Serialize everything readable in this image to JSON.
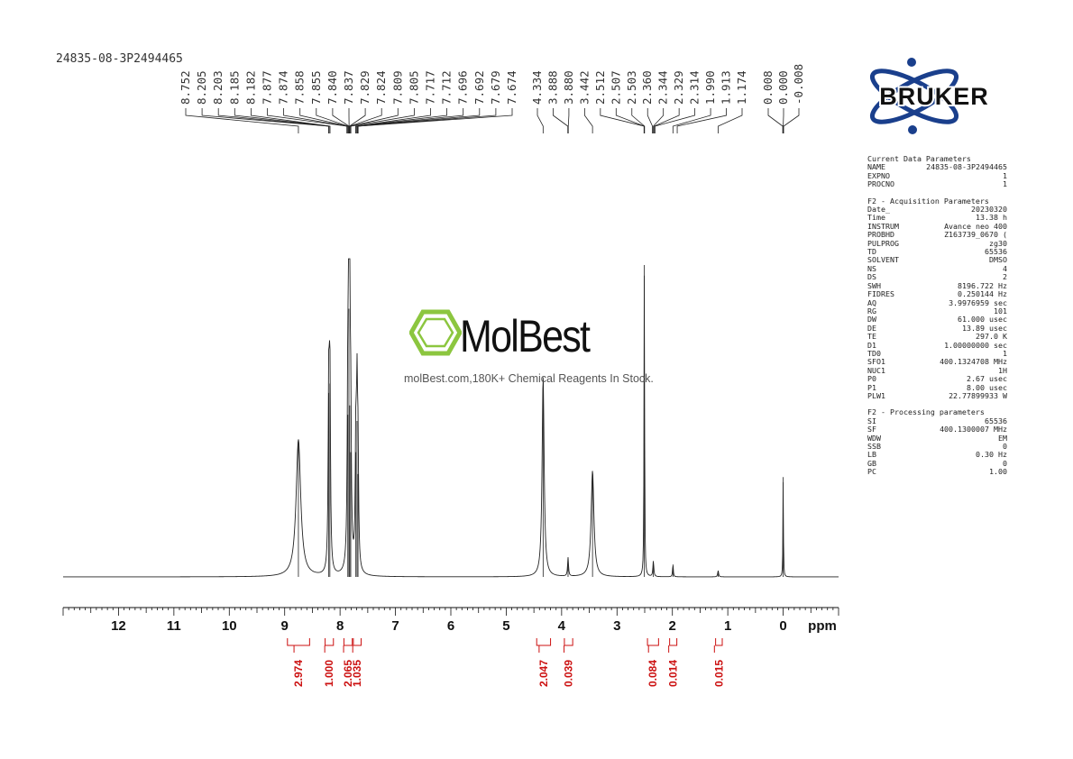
{
  "header": {
    "sample_id": "24835-08-3P2494465"
  },
  "logo": {
    "brand": "BRUKER"
  },
  "watermark": {
    "name": "MolBest",
    "tagline": "molBest.com,180K+ Chemical Reagents In Stock."
  },
  "colors": {
    "integral": "#cc1111",
    "trace": "#222222",
    "logo_blue": "#1a3f8c",
    "molbest_green": "#8cc63f"
  },
  "params": {
    "current": {
      "title": "Current Data Parameters",
      "rows": [
        [
          "NAME",
          "24835-08-3P2494465"
        ],
        [
          "EXPNO",
          "1"
        ],
        [
          "PROCNO",
          "1"
        ]
      ]
    },
    "acquisition": {
      "title": "F2 - Acquisition Parameters",
      "rows": [
        [
          "Date_",
          "20230320"
        ],
        [
          "Time",
          "13.38 h"
        ],
        [
          "INSTRUM",
          "Avance neo 400"
        ],
        [
          "PROBHD",
          "Z163739_0670 ("
        ],
        [
          "PULPROG",
          "zg30"
        ],
        [
          "TD",
          "65536"
        ],
        [
          "SOLVENT",
          "DMSO"
        ],
        [
          "NS",
          "4"
        ],
        [
          "DS",
          "2"
        ],
        [
          "SWH",
          "8196.722 Hz"
        ],
        [
          "FIDRES",
          "0.250144 Hz"
        ],
        [
          "AQ",
          "3.9976959 sec"
        ],
        [
          "RG",
          "101"
        ],
        [
          "DW",
          "61.000 usec"
        ],
        [
          "DE",
          "13.89 usec"
        ],
        [
          "TE",
          "297.0 K"
        ],
        [
          "D1",
          "1.00000000 sec"
        ],
        [
          "TD0",
          "1"
        ],
        [
          "SFO1",
          "400.1324708 MHz"
        ],
        [
          "NUC1",
          "1H"
        ],
        [
          "P0",
          "2.67 usec"
        ],
        [
          "P1",
          "8.00 usec"
        ],
        [
          "PLW1",
          "22.77899933 W"
        ]
      ]
    },
    "processing": {
      "title": "F2 - Processing parameters",
      "rows": [
        [
          "SI",
          "65536"
        ],
        [
          "SF",
          "400.1300007 MHz"
        ],
        [
          "WDW",
          "EM"
        ],
        [
          "SSB",
          "0"
        ],
        [
          "LB",
          "0.30 Hz"
        ],
        [
          "GB",
          "0"
        ],
        [
          "PC",
          "1.00"
        ]
      ]
    }
  },
  "chart_data": {
    "type": "line",
    "title": "",
    "xlabel": "ppm",
    "ylabel": "",
    "xlim": [
      13,
      -1
    ],
    "x_reversed": true,
    "x_ticks": [
      "12",
      "11",
      "10",
      "9",
      "8",
      "7",
      "6",
      "5",
      "4",
      "3",
      "2",
      "1",
      "0"
    ],
    "peak_labels": [
      {
        "group": 1,
        "values": [
          "8.752",
          "8.205",
          "8.203",
          "8.185",
          "8.182",
          "7.877",
          "7.874",
          "7.858",
          "7.855",
          "7.840",
          "7.837",
          "7.829",
          "7.824",
          "7.809",
          "7.805",
          "7.717",
          "7.712",
          "7.696",
          "7.692",
          "7.679",
          "7.674"
        ]
      },
      {
        "group": 2,
        "values": [
          "4.334",
          "3.888",
          "3.880",
          "3.442",
          "2.512",
          "2.507",
          "2.503",
          "2.360",
          "2.344",
          "2.329",
          "2.314",
          "1.990",
          "1.913",
          "1.174"
        ]
      },
      {
        "group": 3,
        "values": [
          "0.008",
          "0.000",
          "-0.008"
        ]
      }
    ],
    "peaks": [
      {
        "ppm": 8.752,
        "height": 0.44,
        "width": 0.05
      },
      {
        "ppm": 8.204,
        "height": 0.59,
        "width": 0.012
      },
      {
        "ppm": 8.184,
        "height": 0.62,
        "width": 0.012
      },
      {
        "ppm": 7.86,
        "height": 0.52,
        "width": 0.012
      },
      {
        "ppm": 7.84,
        "height": 0.86,
        "width": 0.012
      },
      {
        "ppm": 7.825,
        "height": 0.55,
        "width": 0.012
      },
      {
        "ppm": 7.807,
        "height": 0.4,
        "width": 0.012
      },
      {
        "ppm": 7.715,
        "height": 0.4,
        "width": 0.012
      },
      {
        "ppm": 7.694,
        "height": 0.5,
        "width": 0.012
      },
      {
        "ppm": 7.676,
        "height": 0.33,
        "width": 0.012
      },
      {
        "ppm": 4.334,
        "height": 0.64,
        "width": 0.022
      },
      {
        "ppm": 3.884,
        "height": 0.06,
        "width": 0.01
      },
      {
        "ppm": 3.442,
        "height": 0.34,
        "width": 0.03
      },
      {
        "ppm": 2.507,
        "height": 1.0,
        "width": 0.006
      },
      {
        "ppm": 2.344,
        "height": 0.05,
        "width": 0.01
      },
      {
        "ppm": 1.99,
        "height": 0.04,
        "width": 0.008
      },
      {
        "ppm": 1.174,
        "height": 0.02,
        "width": 0.01
      },
      {
        "ppm": 0.0,
        "height": 0.32,
        "width": 0.005
      }
    ],
    "integrals": [
      {
        "value": "2.974",
        "from": 8.95,
        "to": 8.55
      },
      {
        "value": "1.000",
        "from": 8.27,
        "to": 8.12
      },
      {
        "value": "2.065",
        "from": 7.93,
        "to": 7.78
      },
      {
        "value": "1.035",
        "from": 7.76,
        "to": 7.62
      },
      {
        "value": "2.047",
        "from": 4.45,
        "to": 4.2
      },
      {
        "value": "0.039",
        "from": 3.95,
        "to": 3.8
      },
      {
        "value": "0.084",
        "from": 2.45,
        "to": 2.25
      },
      {
        "value": "0.014",
        "from": 2.05,
        "to": 1.92
      },
      {
        "value": "0.015",
        "from": 1.22,
        "to": 1.1
      }
    ]
  }
}
